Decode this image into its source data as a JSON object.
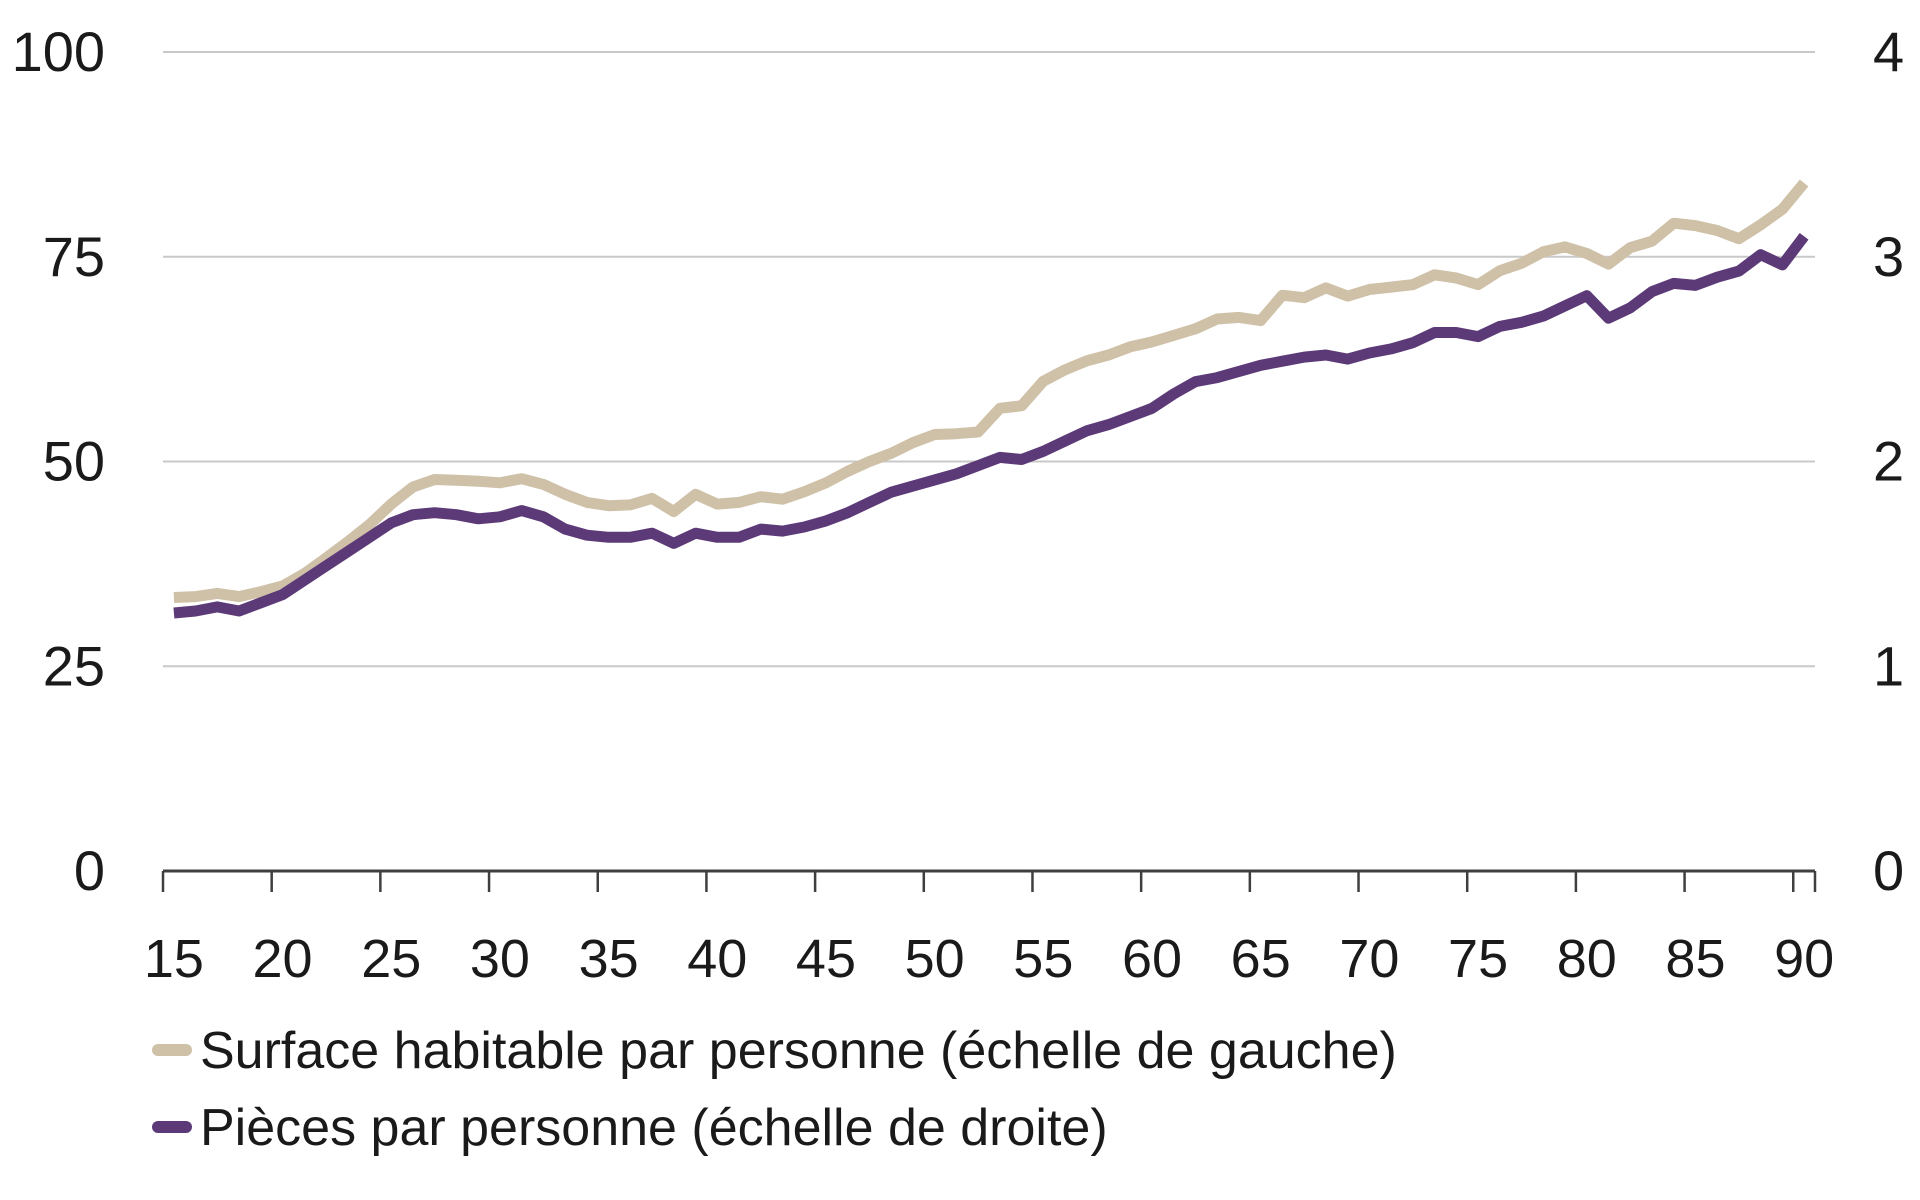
{
  "chart_data": {
    "type": "line",
    "title": "",
    "x": [
      15,
      16,
      17,
      18,
      19,
      20,
      21,
      22,
      23,
      24,
      25,
      26,
      27,
      28,
      29,
      30,
      31,
      32,
      33,
      34,
      35,
      36,
      37,
      38,
      39,
      40,
      41,
      42,
      43,
      44,
      45,
      46,
      47,
      48,
      49,
      50,
      51,
      52,
      53,
      54,
      55,
      56,
      57,
      58,
      59,
      60,
      61,
      62,
      63,
      64,
      65,
      66,
      67,
      68,
      69,
      70,
      71,
      72,
      73,
      74,
      75,
      76,
      77,
      78,
      79,
      80,
      81,
      82,
      83,
      84,
      85,
      86,
      87,
      88,
      89,
      90
    ],
    "x_tick_labels": [
      "15",
      "20",
      "25",
      "30",
      "35",
      "40",
      "45",
      "50",
      "55",
      "60",
      "65",
      "70",
      "75",
      "80",
      "85",
      "90"
    ],
    "x_tick_interval": 5,
    "left_axis": {
      "range": [
        0,
        100
      ],
      "ticks": [
        0,
        25,
        50,
        75,
        100
      ]
    },
    "right_axis": {
      "range": [
        0,
        4
      ],
      "ticks": [
        0,
        1,
        2,
        3,
        4
      ]
    },
    "grid": true,
    "legend_position": "bottom-left",
    "series": [
      {
        "name": "Surface habitable par personne (échelle de gauche)",
        "axis": "left",
        "color": "#cfc0a8",
        "values": [
          33.4,
          33.5,
          33.9,
          33.5,
          34.1,
          34.8,
          36.3,
          38.2,
          40.2,
          42.3,
          44.8,
          46.9,
          47.8,
          47.7,
          47.6,
          47.4,
          47.9,
          47.2,
          46.0,
          45.0,
          44.6,
          44.7,
          45.5,
          43.9,
          46.0,
          44.8,
          45.0,
          45.7,
          45.4,
          46.3,
          47.4,
          48.8,
          50.0,
          51.0,
          52.3,
          53.3,
          53.4,
          53.6,
          56.5,
          56.8,
          59.8,
          61.2,
          62.3,
          63.0,
          64.0,
          64.6,
          65.4,
          66.2,
          67.4,
          67.6,
          67.2,
          70.3,
          70.0,
          71.2,
          70.2,
          71.0,
          71.3,
          71.6,
          72.8,
          72.4,
          71.6,
          73.3,
          74.2,
          75.6,
          76.2,
          75.4,
          74.1,
          76.1,
          76.9,
          79.1,
          78.8,
          78.2,
          77.2,
          78.9,
          80.8,
          84.0
        ]
      },
      {
        "name": "Pièces par personne (échelle de droite)",
        "axis": "right",
        "color": "#5c3a78",
        "values": [
          1.26,
          1.27,
          1.29,
          1.27,
          1.31,
          1.35,
          1.42,
          1.49,
          1.56,
          1.63,
          1.7,
          1.74,
          1.75,
          1.74,
          1.72,
          1.73,
          1.76,
          1.73,
          1.67,
          1.64,
          1.63,
          1.63,
          1.65,
          1.6,
          1.65,
          1.63,
          1.63,
          1.67,
          1.66,
          1.68,
          1.71,
          1.75,
          1.8,
          1.85,
          1.88,
          1.91,
          1.94,
          1.98,
          2.02,
          2.01,
          2.05,
          2.1,
          2.15,
          2.18,
          2.22,
          2.26,
          2.33,
          2.39,
          2.41,
          2.44,
          2.47,
          2.49,
          2.51,
          2.52,
          2.5,
          2.53,
          2.55,
          2.58,
          2.63,
          2.63,
          2.61,
          2.66,
          2.68,
          2.71,
          2.76,
          2.81,
          2.7,
          2.75,
          2.83,
          2.87,
          2.86,
          2.9,
          2.93,
          3.01,
          2.96,
          3.1
        ]
      }
    ]
  },
  "colors": {
    "background": "#ffffff",
    "text": "#1a1a1a",
    "axis_line": "#3f3f3f",
    "grid_line": "#c9c9c9"
  }
}
